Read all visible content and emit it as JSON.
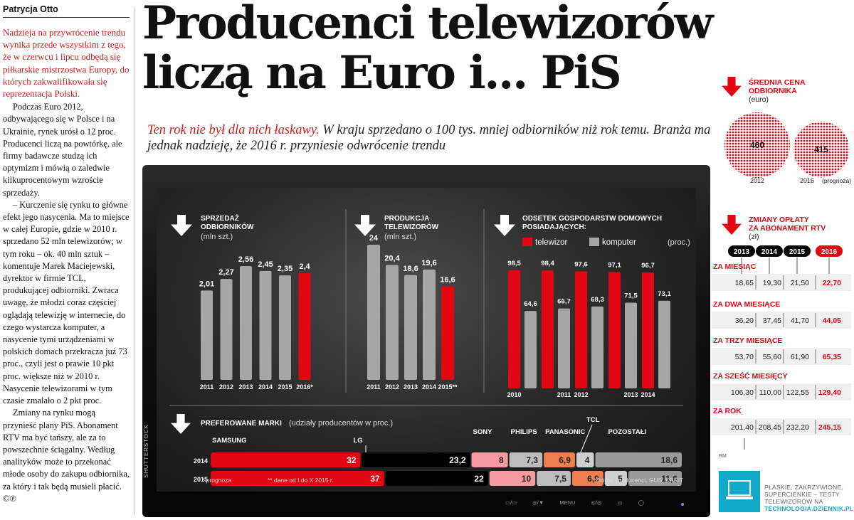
{
  "author": "Patrycja Otto",
  "headline": [
    "Producenci telewizorów",
    "liczą na Euro i... PiS"
  ],
  "subhead": {
    "red": "Ten rok nie był dla nich łaskawy.",
    "rest": " W kraju sprzedano o 100 tys. mniej odbiorników niż rok temu. Branża ma jednak nadzieję, że 2016 r. przyniesie odwrócenie trendu"
  },
  "lead": "Nadzieja na przywrócenie trendu wynika przede wszystkim z tego, że w czerwcu i lipcu odbędą się piłkarskie mistrzostwa Europy, do których zakwalifikowała się reprezentacja Polski.",
  "paragraphs": [
    "Podczas Euro 2012, odbywającego się w Polsce i na Ukrainie, rynek urósł o 12 proc. Producenci liczą na powtórkę, ale firmy badawcze studzą ich optymizm i mówią o zaledwie kilkuprocentowym wzroście sprzedaży.",
    "– Kurczenie się rynku to główne efekt jego nasycenia. Ma to miejsce w całej Europie, gdzie w 2010 r. sprzedano 52 mln telewizorów; w tym roku – ok. 40 mln sztuk – komentuje Marek Maciejewski, dyrektor w firmie TCL, produkującej odbiorniki. Zwraca uwagę, że młodzi coraz częściej oglądają telewizję w internecie, do czego wystarcza komputer, a nasycenie tymi urządzeniami w polskich domach przekracza już 73 proc., czyli jest o prawie 10 pkt proc. większe niż w 2010 r. Nasycenie telewizorami w tym czasie zmalało o 2 pkt proc.",
    "Zmiany na rynku mogą przynieść plany PiS. Abonament RTV ma być tańszy, ale za to powszechnie ściągalny. Według analityków może to przekonać młode osoby do zakupu odbiornika, za który i tak będą musieli płacić. ©℗"
  ],
  "chart_data": [
    {
      "type": "bar",
      "title": "SPRZEDAŻ ODBIORNIKÓW",
      "unit": "(mln szt.)",
      "categories": [
        "2011",
        "2012",
        "2013",
        "2014",
        "2015",
        "2016*"
      ],
      "values": [
        2.01,
        2.27,
        2.56,
        2.45,
        2.35,
        2.4
      ],
      "labels": [
        "2,01",
        "2,27",
        "2,56",
        "2,45",
        "2,35",
        "2,4"
      ],
      "highlight_index": 5
    },
    {
      "type": "bar",
      "title": "PRODUKCJA TELEWIZORÓW",
      "unit": "(mln szt.)",
      "categories": [
        "2011",
        "2012",
        "2013",
        "2014",
        "2015**"
      ],
      "values": [
        24,
        20.4,
        18.6,
        19.6,
        16.6
      ],
      "labels": [
        "24",
        "20,4",
        "18,6",
        "19,6",
        "16,6"
      ],
      "highlight_index": 4
    },
    {
      "type": "bar",
      "title": "ODSETEK GOSPODARSTW DOMOWYCH POSIADAJĄCYCH:",
      "unit": "(proc.)",
      "categories": [
        "2010",
        "2011",
        "2012",
        "2013",
        "2014"
      ],
      "series": [
        {
          "name": "telewizor",
          "values": [
            98.5,
            98.4,
            97.6,
            97.1,
            96.7
          ],
          "labels": [
            "98,5",
            "98,4",
            "97,6",
            "97,1",
            "96,7"
          ],
          "color": "#e30613"
        },
        {
          "name": "komputer",
          "values": [
            64.6,
            66.7,
            68.3,
            71.5,
            73.1
          ],
          "labels": [
            "64,6",
            "66,7",
            "68,3",
            "71,5",
            "73,1"
          ],
          "color": "#a6a6a6"
        }
      ]
    },
    {
      "type": "bar",
      "orientation": "horizontal-stacked",
      "title": "PREFEROWANE MARKI",
      "unit": "(udziały producentów w proc.)",
      "categories": [
        "2014",
        "2015"
      ],
      "series": [
        {
          "name": "SAMSUNG",
          "values": [
            32,
            37
          ],
          "labels": [
            "32",
            "37"
          ],
          "color": "#e30613"
        },
        {
          "name": "LG",
          "values": [
            23.2,
            22
          ],
          "labels": [
            "23,2",
            "22"
          ],
          "color": "#000000"
        },
        {
          "name": "SONY",
          "values": [
            8,
            10
          ],
          "labels": [
            "8",
            "10"
          ],
          "color": "#f49aa0"
        },
        {
          "name": "PHILIPS",
          "values": [
            7.3,
            7.5
          ],
          "labels": [
            "7,3",
            "7,5"
          ],
          "color": "#bdbdbd"
        },
        {
          "name": "PANASONIC",
          "values": [
            6.9,
            6.9
          ],
          "labels": [
            "6,9",
            "6,9"
          ],
          "color": "#ee7f4f"
        },
        {
          "name": "TCL",
          "values": [
            4,
            5
          ],
          "labels": [
            "4",
            "5"
          ],
          "color": "#cfcfcf"
        },
        {
          "name": "POZOSTAŁI",
          "values": [
            18.6,
            11.6
          ],
          "labels": [
            "18,6",
            "11,6"
          ],
          "color": "#9a9a9a"
        }
      ]
    },
    {
      "type": "bubble",
      "title": "ŚREDNIA CENA ODBIORNIKA",
      "unit": "(euro)",
      "categories": [
        "2012",
        "2016"
      ],
      "category_notes": [
        "",
        "(prognoza)"
      ],
      "values": [
        460,
        415
      ],
      "color": "#e30613"
    },
    {
      "type": "table",
      "title": "ZMIANY OPŁATY ZA ABONAMENT RTV",
      "unit": "(zł)",
      "columns": [
        "2013",
        "2014",
        "2015",
        "2016"
      ],
      "rows": [
        {
          "label": "ZA MIESIĄC",
          "values": [
            "18,65",
            "19,30",
            "21,50",
            "22,70"
          ]
        },
        {
          "label": "ZA DWA MIESIĄCE",
          "values": [
            "36,20",
            "37,45",
            "41,70",
            "44,05"
          ]
        },
        {
          "label": "ZA TRZY MIESIĄCE",
          "values": [
            "53,70",
            "55,60",
            "61,90",
            "65,35"
          ]
        },
        {
          "label": "ZA SZEŚĆ MIESIĘCY",
          "values": [
            "106,30",
            "110,00",
            "122,55",
            "129,40"
          ]
        },
        {
          "label": "ZA ROK",
          "values": [
            "201,40",
            "208,45",
            "232,20",
            "245,15"
          ]
        }
      ]
    }
  ],
  "footnotes": {
    "forecast": "* prognoza",
    "data_range": "** dane od I do X 2015 r."
  },
  "source": "Źródło: producenci, GUS, KRRiT",
  "credit": "SHUTTERSTOCK",
  "tv_buttons": [
    "▭/▭",
    "◎/▼",
    "MENU",
    "◎/◎",
    "▭",
    "◯"
  ],
  "rm": "RM",
  "promo": {
    "text": "PŁASKIE, ZAKRZYWIONE, SUPERCIENKIE – TESTY TELEWIZORÓW NA",
    "link": "TECHNOLOGIA.DZIENNIK.PL"
  },
  "colors": {
    "accent": "#d11b1b",
    "bar_red": "#e30613",
    "bar_gray": "#a6a6a6",
    "promo": "#11a9c9"
  }
}
